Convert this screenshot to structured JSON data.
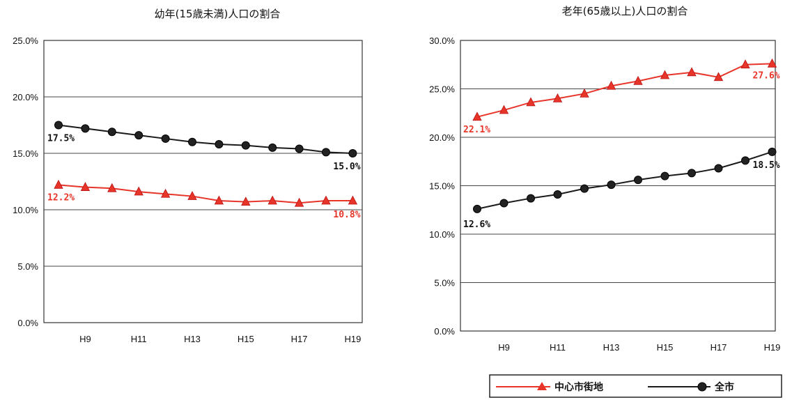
{
  "colors": {
    "central": "#e8352a",
    "city": "#1a1a1a"
  },
  "legend": {
    "entries": [
      {
        "key": "central",
        "label": "中心市街地"
      },
      {
        "key": "city",
        "label": "全市"
      }
    ]
  },
  "chart_data": [
    {
      "type": "line",
      "title": "幼年(15歳未満)人口の割合",
      "xlabel": "",
      "ylabel": "",
      "x": [
        "H8",
        "H9",
        "H10",
        "H11",
        "H12",
        "H13",
        "H14",
        "H15",
        "H16",
        "H17",
        "H18",
        "H19"
      ],
      "x_tick_labels": [
        "",
        "H9",
        "",
        "H11",
        "",
        "H13",
        "",
        "H15",
        "",
        "H17",
        "",
        "H19"
      ],
      "ylim": [
        0,
        25
      ],
      "y_ticks": [
        0,
        5,
        10,
        15,
        20,
        25
      ],
      "y_tick_labels": [
        "0.0%",
        "5.0%",
        "10.0%",
        "15.0%",
        "20.0%",
        "25.0%"
      ],
      "grid": true,
      "series": [
        {
          "name": "全市",
          "key": "city",
          "marker": "circle",
          "values": [
            17.5,
            17.2,
            16.9,
            16.6,
            16.3,
            16.0,
            15.8,
            15.7,
            15.5,
            15.4,
            15.1,
            15.0
          ],
          "start_label": "17.5%",
          "end_label": "15.0%"
        },
        {
          "name": "中心市街地",
          "key": "central",
          "marker": "triangle",
          "values": [
            12.2,
            12.0,
            11.9,
            11.6,
            11.4,
            11.2,
            10.8,
            10.7,
            10.8,
            10.6,
            10.8,
            10.8
          ],
          "start_label": "12.2%",
          "end_label": "10.8%"
        }
      ]
    },
    {
      "type": "line",
      "title": "老年(65歳以上)人口の割合",
      "xlabel": "",
      "ylabel": "",
      "x": [
        "H8",
        "H9",
        "H10",
        "H11",
        "H12",
        "H13",
        "H14",
        "H15",
        "H16",
        "H17",
        "H18",
        "H19"
      ],
      "x_tick_labels": [
        "",
        "H9",
        "",
        "H11",
        "",
        "H13",
        "",
        "H15",
        "",
        "H17",
        "",
        "H19"
      ],
      "ylim": [
        0,
        30
      ],
      "y_ticks": [
        0,
        5,
        10,
        15,
        20,
        25,
        30
      ],
      "y_tick_labels": [
        "0.0%",
        "5.0%",
        "10.0%",
        "15.0%",
        "20.0%",
        "25.0%",
        "30.0%"
      ],
      "grid": true,
      "series": [
        {
          "name": "中心市街地",
          "key": "central",
          "marker": "triangle",
          "values": [
            22.1,
            22.8,
            23.6,
            24.0,
            24.5,
            25.3,
            25.8,
            26.4,
            26.7,
            26.2,
            27.5,
            27.6
          ],
          "start_label": "22.1%",
          "end_label": "27.6%"
        },
        {
          "name": "全市",
          "key": "city",
          "marker": "circle",
          "values": [
            12.6,
            13.2,
            13.7,
            14.1,
            14.7,
            15.1,
            15.6,
            16.0,
            16.3,
            16.8,
            17.6,
            18.5
          ],
          "start_label": "12.6%",
          "end_label": "18.5%"
        }
      ]
    }
  ]
}
